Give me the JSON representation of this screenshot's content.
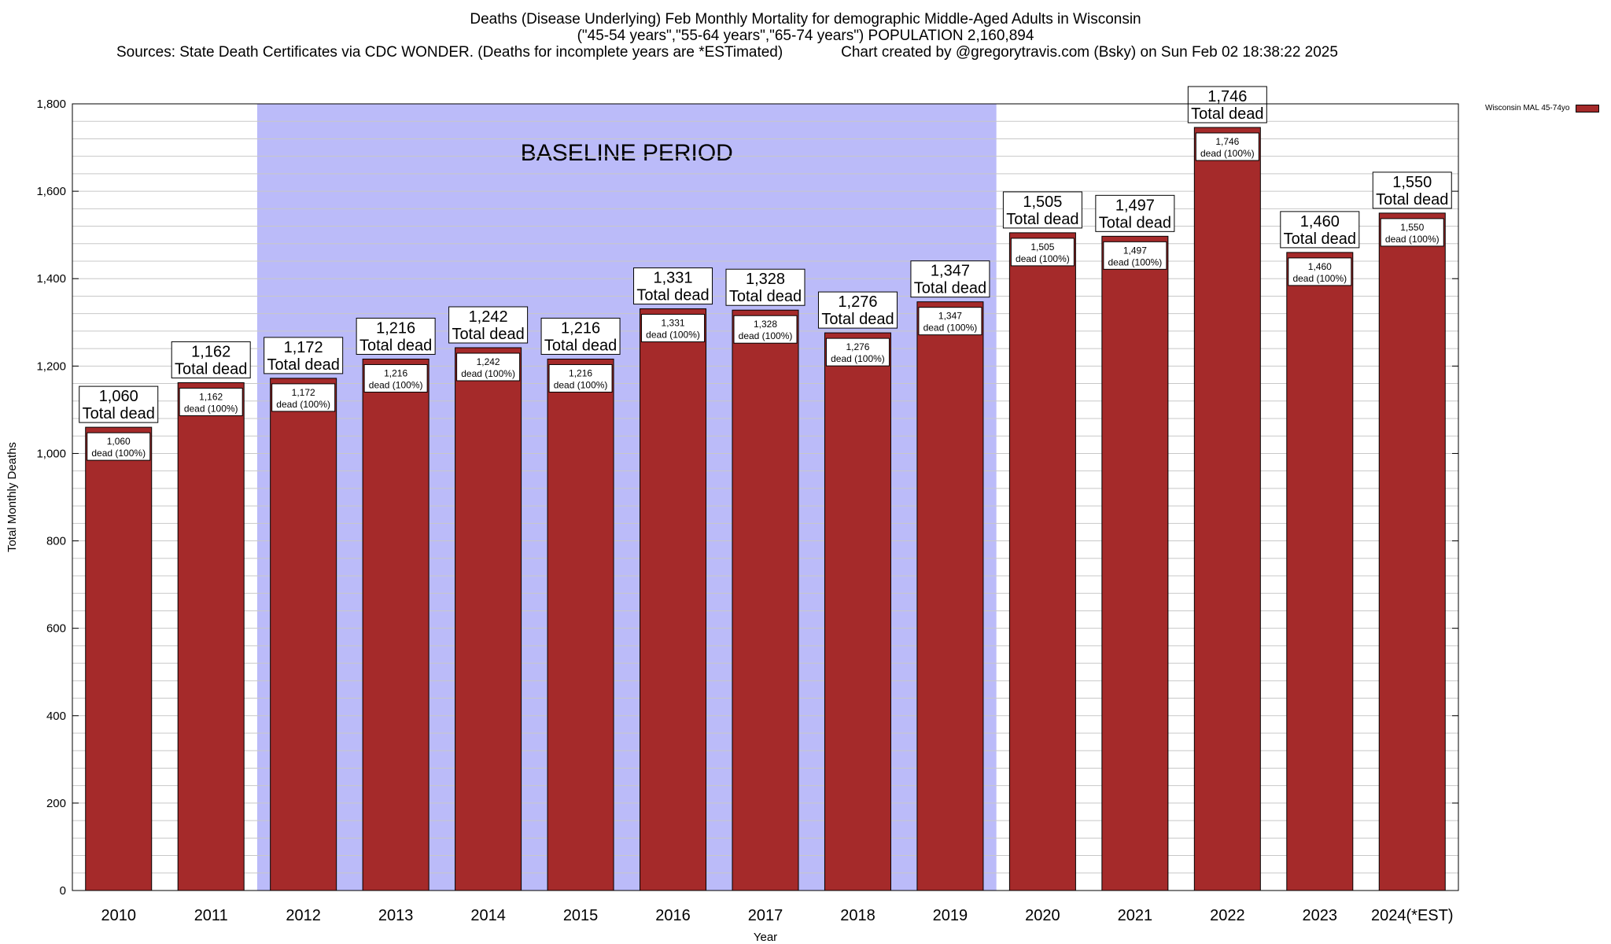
{
  "chart_title": {
    "line1": "Deaths (Disease Underlying) Feb Monthly Mortality for demographic Middle-Aged Adults in Wisconsin",
    "line2": "(\"45-54 years\",\"55-64 years\",\"65-74 years\") POPULATION 2,160,894",
    "line3": "Sources: State Death Certificates via CDC WONDER. (Deaths for incomplete years are *ESTimated)              Chart created by @gregorytravis.com (Bsky) on Sun Feb 02 18:38:22 2025"
  },
  "colors": {
    "bar": "#a52a2a",
    "baseline_band": "#bbbbf9",
    "grid": "#c8c8c8"
  },
  "chart_data": {
    "type": "bar",
    "categories": [
      "2010",
      "2011",
      "2012",
      "2013",
      "2014",
      "2015",
      "2016",
      "2017",
      "2018",
      "2019",
      "2020",
      "2021",
      "2022",
      "2023",
      "2024(*EST)"
    ],
    "series": [
      {
        "name": "Wisconsin MAL 45-74yo",
        "values": [
          1060,
          1162,
          1172,
          1216,
          1242,
          1216,
          1331,
          1328,
          1276,
          1347,
          1505,
          1497,
          1746,
          1460,
          1550
        ],
        "value_labels": [
          "1,060",
          "1,162",
          "1,172",
          "1,216",
          "1,242",
          "1,216",
          "1,331",
          "1,328",
          "1,276",
          "1,347",
          "1,505",
          "1,497",
          "1,746",
          "1,460",
          "1,550"
        ]
      }
    ],
    "total_label": "Total dead",
    "inner_label": "dead (100%)",
    "xlabel": "Year",
    "ylabel": "Total Monthly Deaths",
    "ylim": [
      0,
      1800
    ],
    "yticks": [
      0,
      200,
      400,
      600,
      800,
      1000,
      1200,
      1400,
      1600,
      1800
    ],
    "ytick_labels": [
      "0",
      "200",
      "400",
      "600",
      "800",
      "1,000",
      "1,200",
      "1,400",
      "1,600",
      "1,800"
    ],
    "minor_grid_step": 40,
    "grid": true,
    "legend_position": "top-right",
    "baseline_band": {
      "label": "BASELINE PERIOD",
      "from_category": "2012",
      "to_category": "2019"
    }
  }
}
